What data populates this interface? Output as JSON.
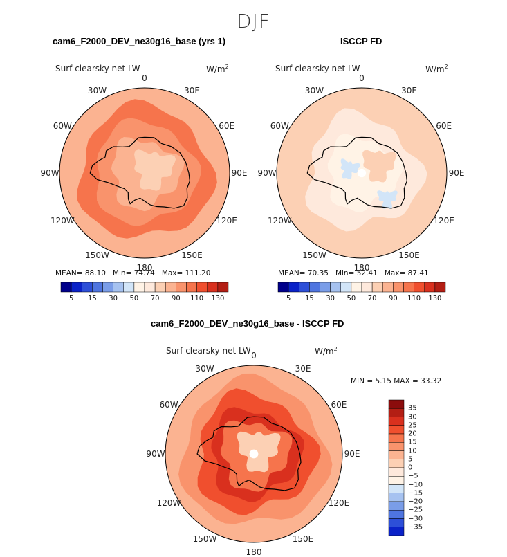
{
  "season": "DJF",
  "colors": {
    "neg": [
      "#00008b",
      "#0a22c8",
      "#2d4fd8",
      "#4f75e0",
      "#7a9de8",
      "#a6c2f0",
      "#d2e5f8"
    ],
    "pos": [
      "#fee9dc",
      "#fcd0b4",
      "#fbb391",
      "#f9936c",
      "#f6744c",
      "#f04f2e",
      "#d9301e",
      "#b31e14",
      "#8b0c0c"
    ],
    "zero_pos": "#fff3e6",
    "coast": "#000000"
  },
  "panels": [
    {
      "title": "cam6_F2000_DEV_ne30g16_base (yrs 1)",
      "variable": "Surf clearsky net LW",
      "units": "W/m",
      "units_sup": "2",
      "stats": {
        "mean_label": "MEAN=",
        "mean": "88.10",
        "min_label": "Min=",
        "min": "74.74",
        "max_label": "Max=",
        "max": "111.20"
      },
      "levels": [
        "5",
        "15",
        "30",
        "50",
        "70",
        "90",
        "110",
        "130"
      ],
      "field_level": "high"
    },
    {
      "title": "ISCCP FD",
      "variable": "Surf clearsky net LW",
      "units": "W/m",
      "units_sup": "2",
      "stats": {
        "mean_label": "MEAN=",
        "mean": "70.35",
        "min_label": "Min=",
        "min": "52.41",
        "max_label": "Max=",
        "max": "87.41"
      },
      "levels": [
        "5",
        "15",
        "30",
        "50",
        "70",
        "90",
        "110",
        "130"
      ],
      "field_level": "low"
    },
    {
      "title": "cam6_F2000_DEV_ne30g16_base - ISCCP FD",
      "variable": "Surf clearsky net LW",
      "units": "W/m",
      "units_sup": "2",
      "stats": {
        "min_label": "MIN =",
        "min": "5.15",
        "max_label": "MAX =",
        "max": "33.32"
      },
      "levels": [
        "35",
        "30",
        "25",
        "20",
        "15",
        "10",
        "5",
        "0",
        "−5",
        "−10",
        "−15",
        "−20",
        "−25",
        "−30",
        "−35"
      ],
      "field_level": "diff"
    }
  ],
  "longitudes": [
    "0",
    "30E",
    "60E",
    "90E",
    "120E",
    "150E",
    "180",
    "150W",
    "120W",
    "90W",
    "60W",
    "30W"
  ]
}
